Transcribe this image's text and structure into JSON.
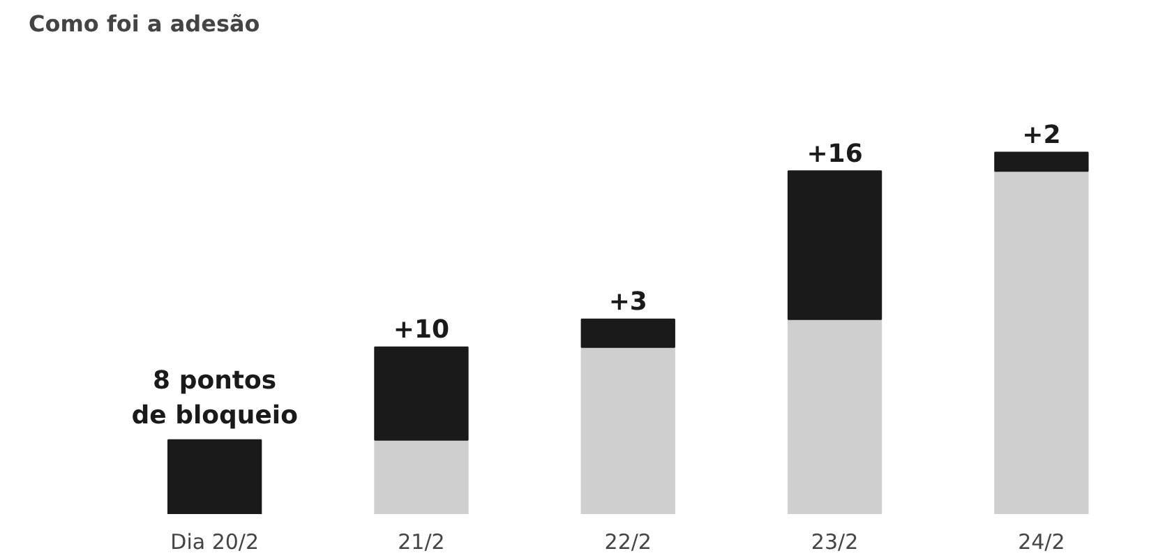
{
  "chart_data": {
    "type": "bar",
    "title": "Como foi a adesão",
    "categories": [
      "Dia 20/2",
      "21/2",
      "22/2",
      "23/2",
      "24/2"
    ],
    "stacked": true,
    "series": [
      {
        "color": "#cfcfcf",
        "values": [
          0,
          8,
          18,
          21,
          37
        ]
      },
      {
        "color": "#1a1a1a",
        "values": [
          8,
          10,
          3,
          16,
          2
        ],
        "value_labels": [
          "8 pontos\nde bloqueio",
          "+10",
          "+3",
          "+16",
          "+2"
        ]
      }
    ]
  }
}
